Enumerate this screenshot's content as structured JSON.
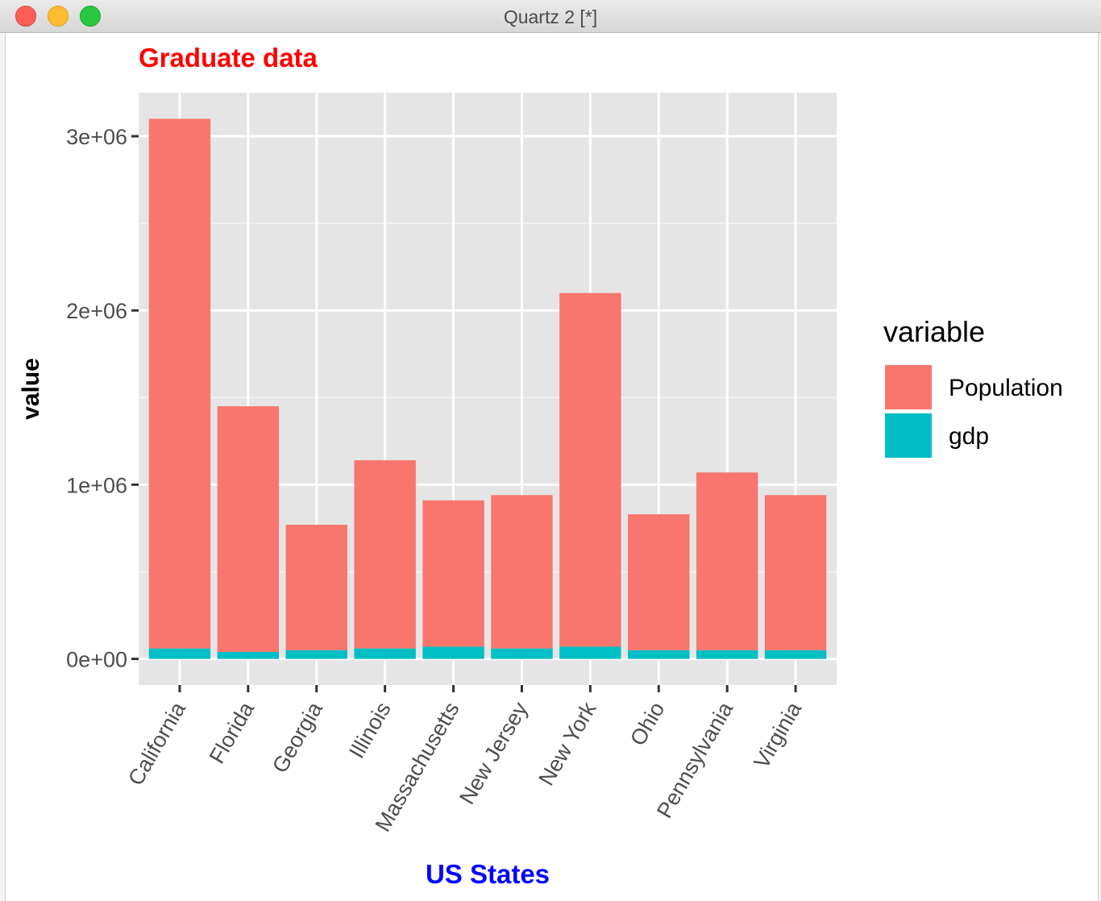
{
  "window": {
    "title": "Quartz 2 [*]"
  },
  "chart_data": {
    "type": "bar",
    "stacked": true,
    "title": "Graduate data",
    "title_color": "#ff0000",
    "xlabel": "US States",
    "xlabel_color": "#0000ff",
    "ylabel": "value",
    "ylim": [
      -150000,
      3250000
    ],
    "yticks": [
      0,
      1000000,
      2000000,
      3000000
    ],
    "ytick_labels": [
      "0e+00",
      "1e+06",
      "2e+06",
      "3e+06"
    ],
    "grid": true,
    "legend_position": "right",
    "legend_title": "variable",
    "categories": [
      "California",
      "Florida",
      "Georgia",
      "Illinois",
      "Massachusetts",
      "New Jersey",
      "New York",
      "Ohio",
      "Pennsylvania",
      "Virginia"
    ],
    "series": [
      {
        "name": "Population",
        "color": "#f8766d",
        "values": [
          3040000,
          1410000,
          720000,
          1080000,
          840000,
          880000,
          2030000,
          780000,
          1020000,
          890000
        ]
      },
      {
        "name": "gdp",
        "color": "#00bfc4",
        "values": [
          60000,
          40000,
          50000,
          60000,
          70000,
          60000,
          70000,
          50000,
          50000,
          50000
        ]
      }
    ]
  }
}
